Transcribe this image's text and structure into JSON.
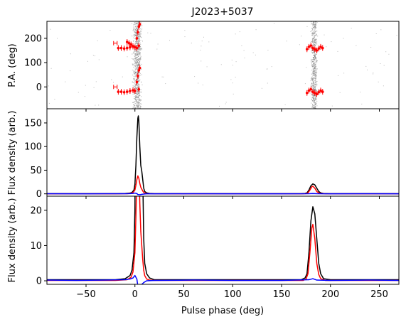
{
  "chart_data": {
    "type": "line",
    "title": "J2023+5037",
    "x_range": [
      -90,
      270
    ],
    "x_ticks": [
      -50,
      0,
      50,
      100,
      150,
      200,
      250
    ],
    "x_tick_labels": [
      "−50",
      "0",
      "50",
      "100",
      "150",
      "200",
      "250"
    ],
    "xlabel": "Pulse phase (deg)",
    "colors": {
      "total": "#000000",
      "linear": "#ff0000",
      "circular": "#0000ff",
      "pa": "#ff0000",
      "pa_scatter": "#808080"
    },
    "panels": [
      {
        "id": "pa",
        "ylabel": "P.A. (deg)",
        "ylim": [
          -90,
          270
        ],
        "yticks": [
          0,
          100,
          200
        ],
        "ytick_labels": [
          "0",
          "100",
          "200"
        ],
        "pa_points_upper": [
          [
            -8,
            185
          ],
          [
            -6,
            180
          ],
          [
            -4,
            175
          ],
          [
            -2,
            168
          ],
          [
            0,
            163
          ],
          [
            2,
            160
          ],
          [
            4,
            170
          ],
          [
            2,
            200
          ],
          [
            3,
            225
          ],
          [
            4,
            248
          ],
          [
            5,
            258
          ],
          [
            -17,
            160
          ],
          [
            -14,
            160
          ],
          [
            -11,
            158
          ],
          [
            -8,
            160
          ],
          [
            -5,
            163
          ],
          [
            -2,
            166
          ],
          [
            176,
            155
          ],
          [
            178,
            165
          ],
          [
            180,
            170
          ],
          [
            182,
            160
          ],
          [
            184,
            155
          ],
          [
            186,
            150
          ],
          [
            188,
            158
          ],
          [
            190,
            165
          ],
          [
            192,
            160
          ]
        ],
        "pa_points_lower": [
          [
            -17,
            -20
          ],
          [
            -14,
            -20
          ],
          [
            -11,
            -22
          ],
          [
            -8,
            -20
          ],
          [
            -5,
            -17
          ],
          [
            -2,
            -14
          ],
          [
            2,
            20
          ],
          [
            3,
            45
          ],
          [
            4,
            68
          ],
          [
            5,
            78
          ],
          [
            0,
            -17
          ],
          [
            4,
            -10
          ],
          [
            176,
            -25
          ],
          [
            178,
            -15
          ],
          [
            180,
            -10
          ],
          [
            182,
            -20
          ],
          [
            184,
            -25
          ],
          [
            186,
            -30
          ],
          [
            188,
            -22
          ],
          [
            190,
            -15
          ],
          [
            192,
            -20
          ]
        ],
        "pa_flag_points": [
          [
            -20,
            180
          ],
          [
            -20,
            0
          ]
        ]
      },
      {
        "id": "profile-full",
        "ylabel": "Flux density (arb.)",
        "ylim": [
          -5,
          180
        ],
        "yticks": [
          0,
          50,
          100,
          150
        ],
        "ytick_labels": [
          "0",
          "50",
          "100",
          "150"
        ]
      },
      {
        "id": "profile-zoom",
        "ylabel": "Flux density (arb.)",
        "ylim": [
          -1,
          24
        ],
        "yticks": [
          0,
          10,
          20
        ],
        "ytick_labels": [
          "0",
          "10",
          "20"
        ]
      }
    ],
    "series": [
      {
        "key": "total",
        "points": [
          [
            -90,
            0.3
          ],
          [
            -20,
            0.3
          ],
          [
            -10,
            0.6
          ],
          [
            -5,
            1.5
          ],
          [
            -3,
            3
          ],
          [
            -1,
            8
          ],
          [
            0,
            20
          ],
          [
            1,
            60
          ],
          [
            2,
            120
          ],
          [
            3,
            160
          ],
          [
            3.5,
            165
          ],
          [
            4,
            155
          ],
          [
            5,
            100
          ],
          [
            6,
            60
          ],
          [
            7,
            48
          ],
          [
            8,
            30
          ],
          [
            9,
            12
          ],
          [
            10,
            5
          ],
          [
            12,
            2
          ],
          [
            15,
            0.8
          ],
          [
            20,
            0.3
          ],
          [
            170,
            0.3
          ],
          [
            174,
            0.8
          ],
          [
            176,
            2
          ],
          [
            178,
            8
          ],
          [
            180,
            17
          ],
          [
            182,
            21
          ],
          [
            184,
            19
          ],
          [
            186,
            12
          ],
          [
            188,
            5
          ],
          [
            190,
            2
          ],
          [
            193,
            0.6
          ],
          [
            200,
            0.3
          ],
          [
            270,
            0.3
          ]
        ]
      },
      {
        "key": "linear",
        "points": [
          [
            -90,
            0.1
          ],
          [
            -20,
            0.1
          ],
          [
            -8,
            0.3
          ],
          [
            -4,
            1
          ],
          [
            -2,
            2.5
          ],
          [
            0,
            8
          ],
          [
            1,
            18
          ],
          [
            2,
            30
          ],
          [
            3,
            38
          ],
          [
            4,
            33
          ],
          [
            5,
            22
          ],
          [
            6,
            14
          ],
          [
            7,
            10
          ],
          [
            8,
            6
          ],
          [
            9,
            3
          ],
          [
            10,
            1.5
          ],
          [
            12,
            0.5
          ],
          [
            15,
            0.2
          ],
          [
            20,
            0.1
          ],
          [
            172,
            0.1
          ],
          [
            175,
            0.5
          ],
          [
            177,
            2
          ],
          [
            179,
            8
          ],
          [
            181,
            15
          ],
          [
            182,
            16
          ],
          [
            184,
            12
          ],
          [
            186,
            5
          ],
          [
            188,
            1.8
          ],
          [
            190,
            0.6
          ],
          [
            195,
            0.1
          ],
          [
            270,
            0.1
          ]
        ]
      },
      {
        "key": "circular",
        "points": [
          [
            -90,
            0.2
          ],
          [
            -60,
            0.1
          ],
          [
            -30,
            0.2
          ],
          [
            -10,
            0.3
          ],
          [
            -5,
            0.5
          ],
          [
            -2,
            0.8
          ],
          [
            0,
            1.5
          ],
          [
            2,
            0.5
          ],
          [
            3,
            -1.5
          ],
          [
            5,
            -2
          ],
          [
            7,
            -1
          ],
          [
            9,
            -0.5
          ],
          [
            12,
            0
          ],
          [
            20,
            0.1
          ],
          [
            60,
            0.2
          ],
          [
            100,
            0.1
          ],
          [
            150,
            0.1
          ],
          [
            178,
            0.3
          ],
          [
            182,
            0.6
          ],
          [
            186,
            0.2
          ],
          [
            200,
            0.1
          ],
          [
            240,
            0.2
          ],
          [
            270,
            0.1
          ]
        ]
      }
    ]
  }
}
